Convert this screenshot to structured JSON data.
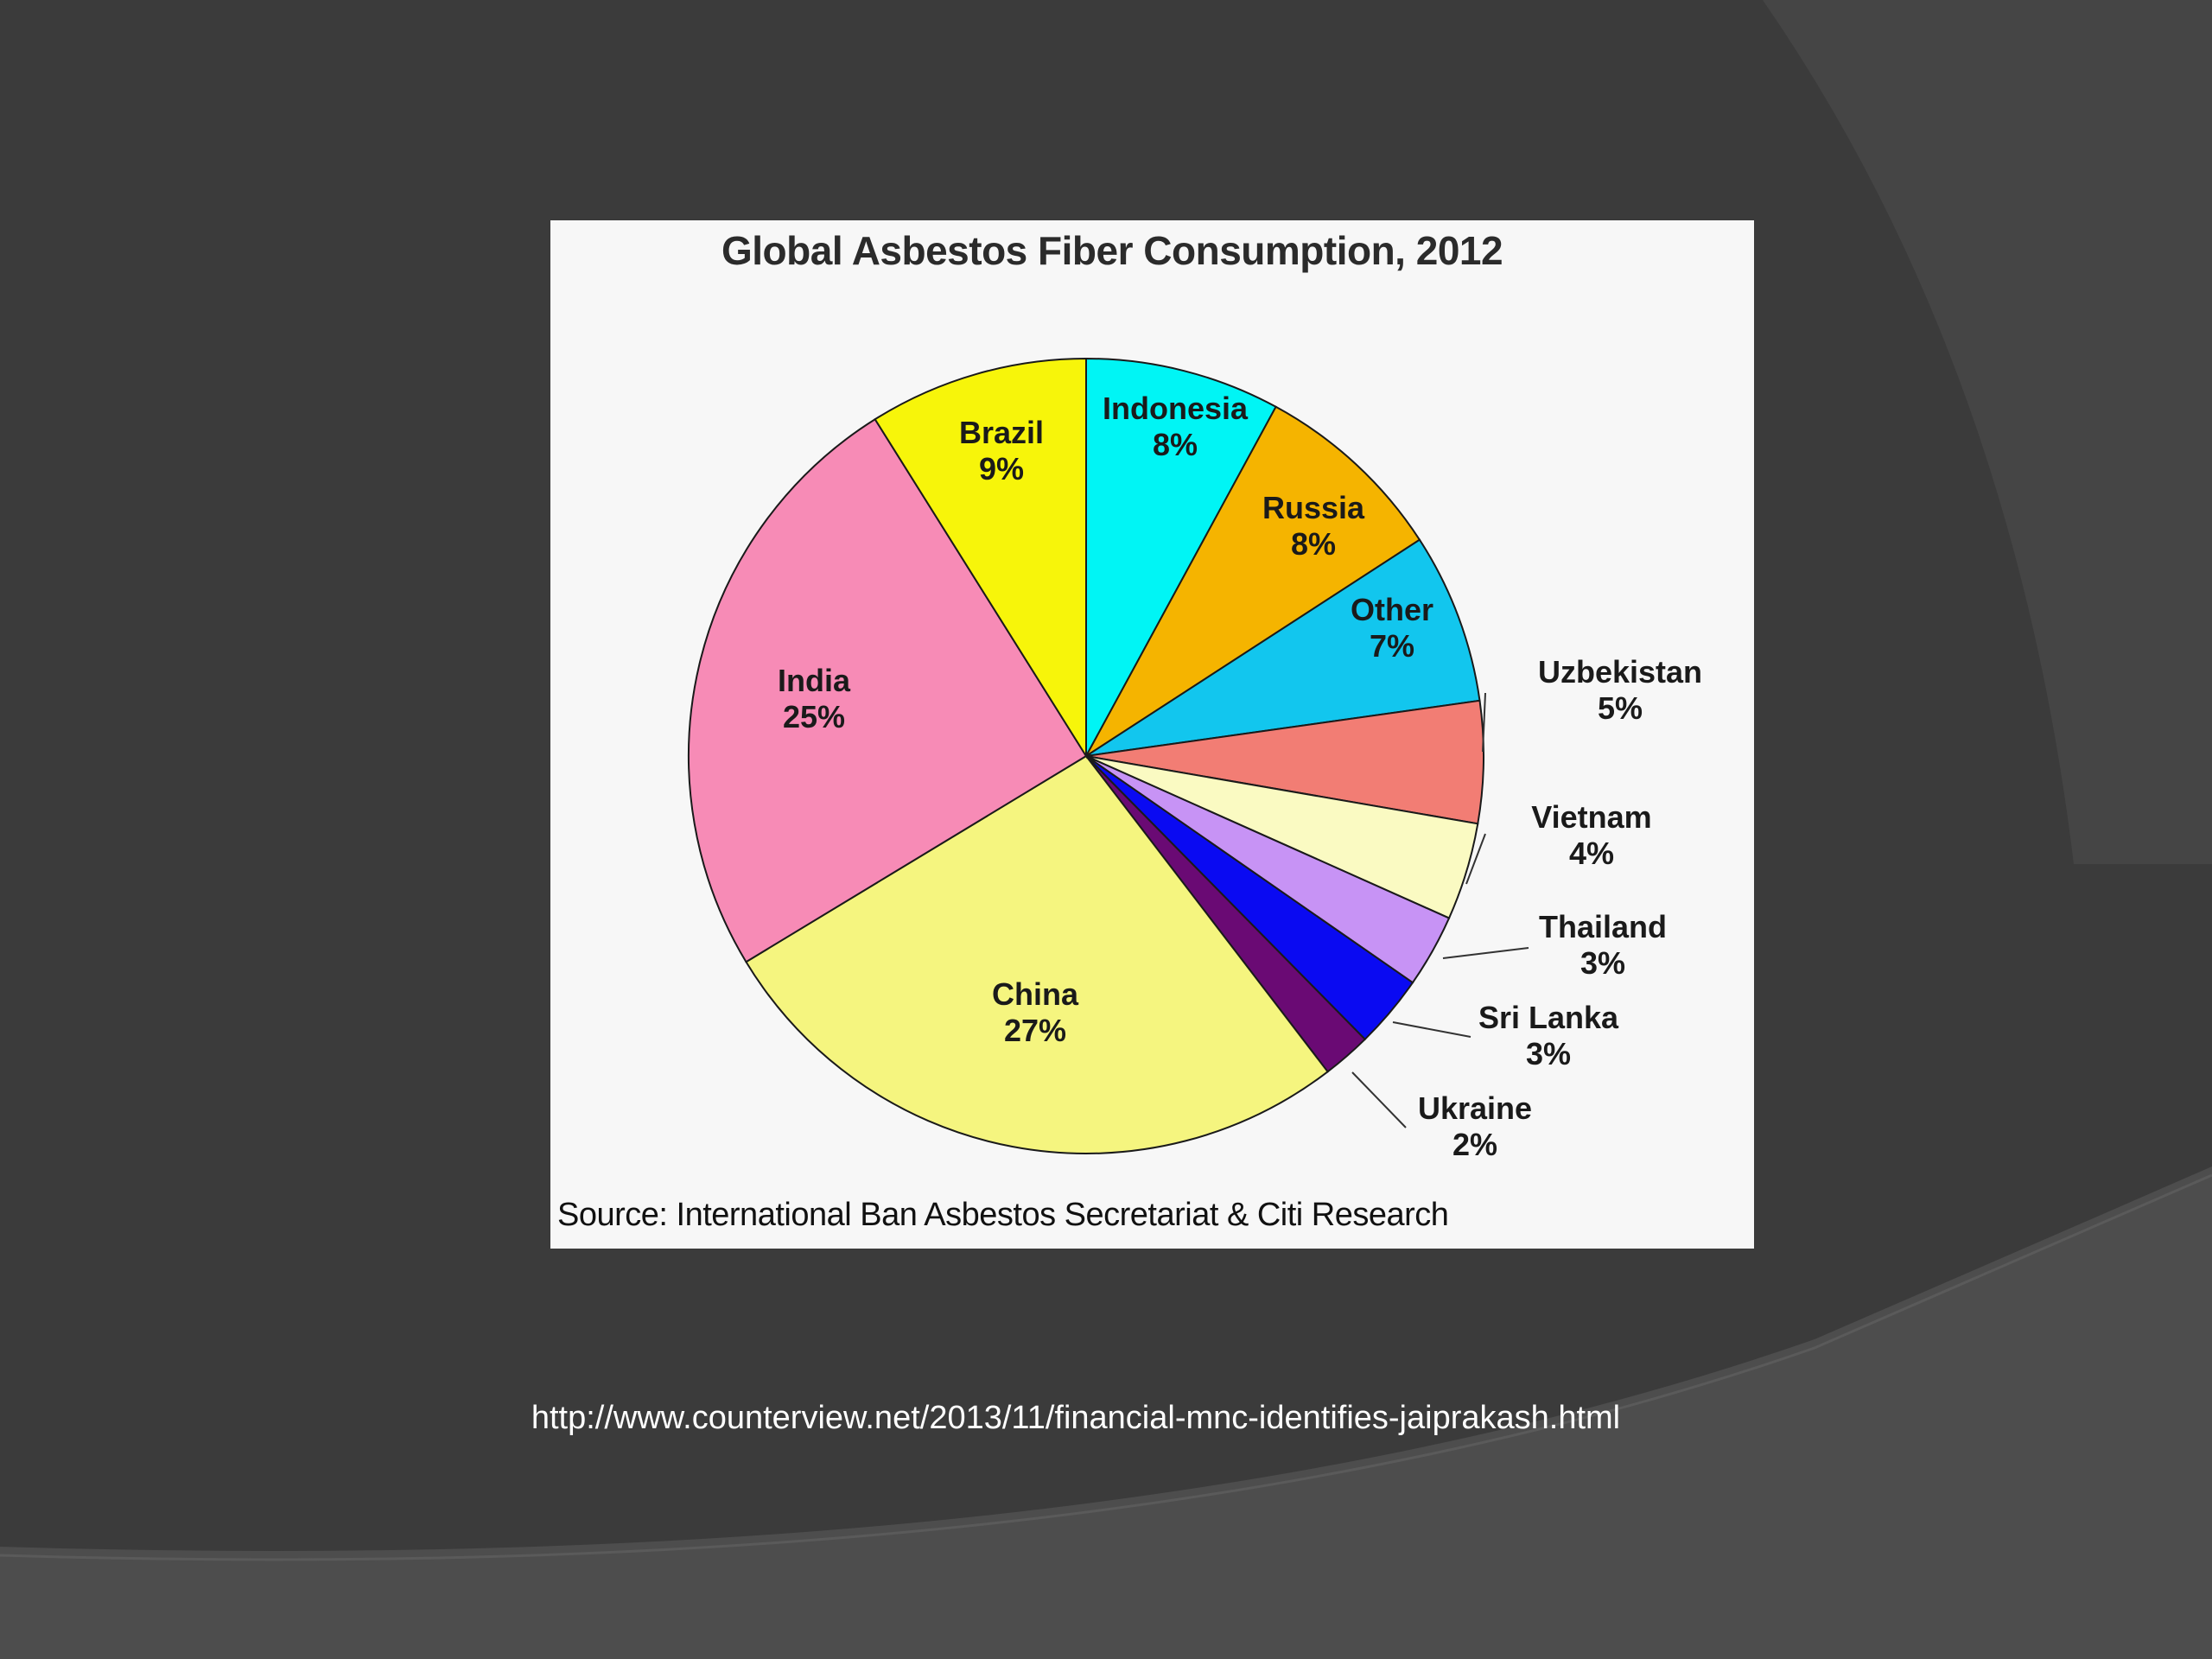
{
  "slide": {
    "background": "#3b3b3b",
    "accent": "#4a4a4a",
    "footer_url": "http://www.counterview.net/2013/11/financial-mnc-identifies-jaiprakash.html"
  },
  "chart_data": {
    "type": "pie",
    "title": "Global Asbestos Fiber Consumption, 2012",
    "source": "Source: International Ban Asbestos Secretariat & Citi Research",
    "slices": [
      {
        "label": "Indonesia",
        "value": 8,
        "value_label": "8%",
        "color": "#00f5f5",
        "label_placement": "inside"
      },
      {
        "label": "Russia",
        "value": 8,
        "value_label": "8%",
        "color": "#f5b400",
        "label_placement": "inside"
      },
      {
        "label": "Other",
        "value": 7,
        "value_label": "7%",
        "color": "#12c6ee",
        "label_placement": "inside"
      },
      {
        "label": "Uzbekistan",
        "value": 5,
        "value_label": "5%",
        "color": "#f27d74",
        "label_placement": "callout"
      },
      {
        "label": "Vietnam",
        "value": 4,
        "value_label": "4%",
        "color": "#fafac2",
        "label_placement": "callout"
      },
      {
        "label": "Thailand",
        "value": 3,
        "value_label": "3%",
        "color": "#c793f5",
        "label_placement": "callout"
      },
      {
        "label": "Sri Lanka",
        "value": 3,
        "value_label": "3%",
        "color": "#0a0af2",
        "label_placement": "callout"
      },
      {
        "label": "Ukraine",
        "value": 2,
        "value_label": "2%",
        "color": "#6a0a74",
        "label_placement": "callout"
      },
      {
        "label": "China",
        "value": 27,
        "value_label": "27%",
        "color": "#f5f57f",
        "label_placement": "inside"
      },
      {
        "label": "India",
        "value": 25,
        "value_label": "25%",
        "color": "#f78bb6",
        "label_placement": "inside"
      },
      {
        "label": "Brazil",
        "value": 9,
        "value_label": "9%",
        "color": "#f7f50a",
        "label_placement": "inside"
      }
    ]
  }
}
